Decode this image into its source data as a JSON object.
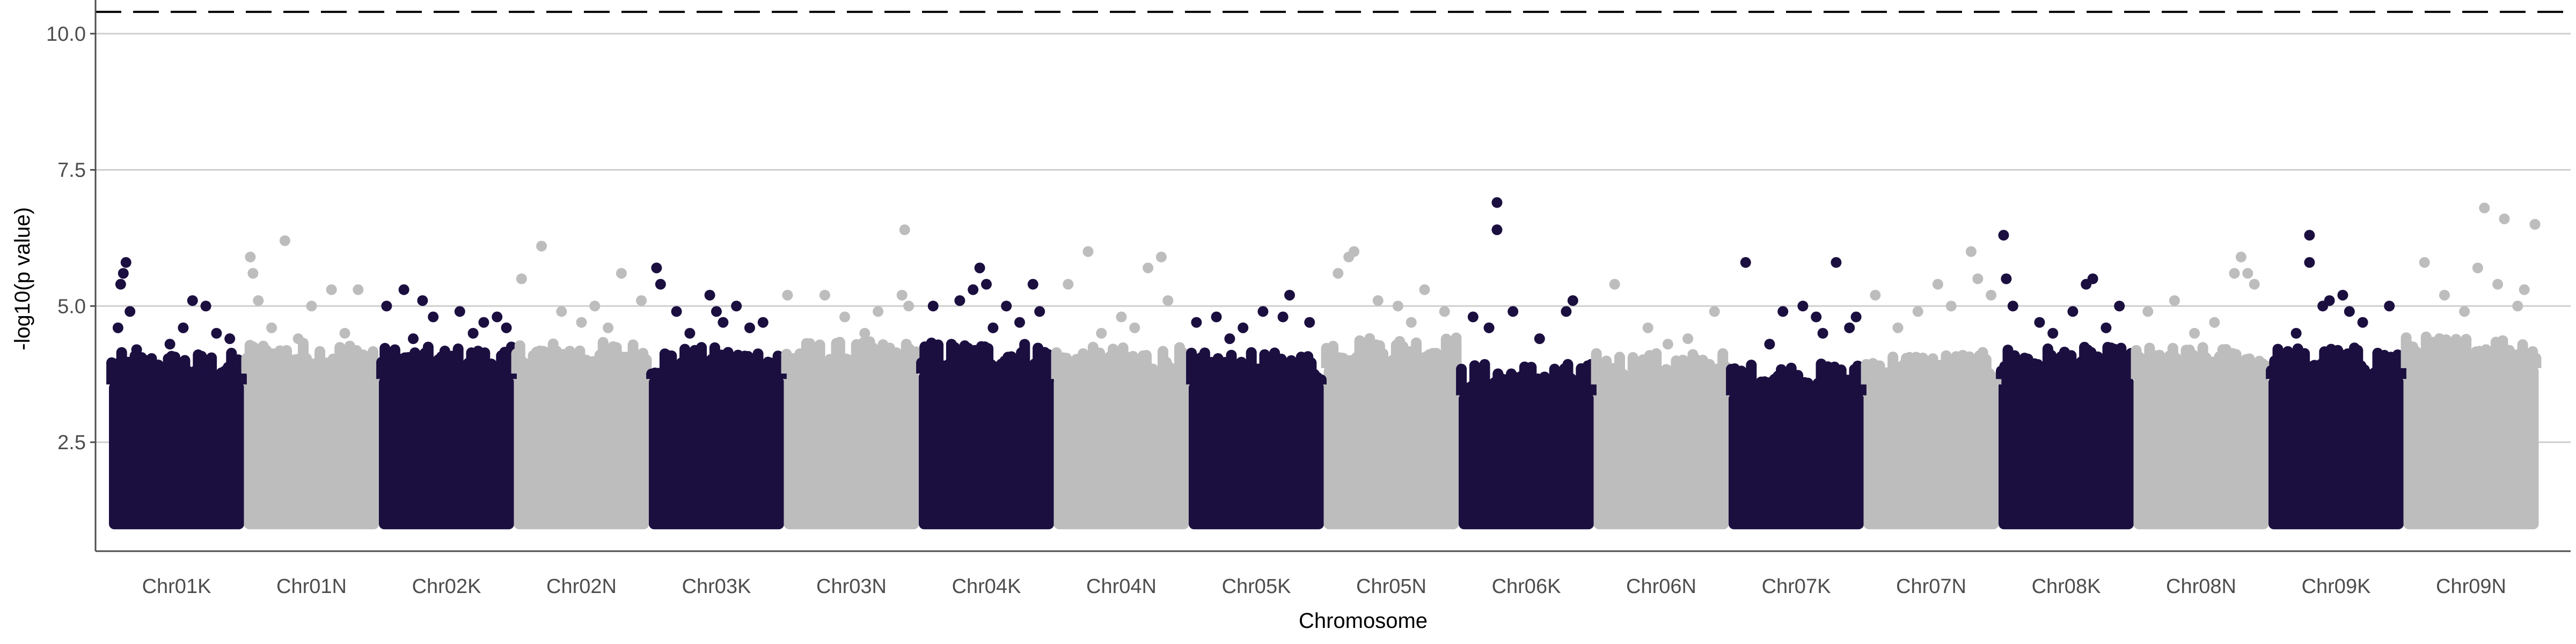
{
  "chart_data": {
    "type": "scatter",
    "subtype": "manhattan",
    "title": "",
    "xlabel": "Chromosome",
    "ylabel": "-log10(p value)",
    "ylim": [
      0.5,
      10.5
    ],
    "yticks": [
      2.5,
      5.0,
      7.5,
      10.0
    ],
    "ytick_labels": [
      "2.5",
      "5.0",
      "7.5",
      "10.0"
    ],
    "significance_line": 10.4,
    "significance_line_style": "dashed",
    "grid": "horizontal major lines",
    "legend": "none",
    "colors": {
      "odd": "#1b0f40",
      "even": "#bdbdbd",
      "grid": "#cfcfcf",
      "threshold": "#000000"
    },
    "baseline_min": 1.0,
    "categories": [
      "Chr01K",
      "Chr01N",
      "Chr02K",
      "Chr02N",
      "Chr03K",
      "Chr03N",
      "Chr04K",
      "Chr04N",
      "Chr05K",
      "Chr05N",
      "Chr06K",
      "Chr06N",
      "Chr07K",
      "Chr07N",
      "Chr08K",
      "Chr08N",
      "Chr09K",
      "Chr09N"
    ],
    "chromosomes": [
      {
        "name": "Chr01K",
        "color": "odd",
        "bulk_top": 3.6,
        "top_points": [
          [
            0.06,
            4.6
          ],
          [
            0.08,
            5.4
          ],
          [
            0.1,
            5.6
          ],
          [
            0.12,
            5.8
          ],
          [
            0.15,
            4.9
          ],
          [
            0.45,
            4.3
          ],
          [
            0.55,
            4.6
          ],
          [
            0.62,
            5.1
          ],
          [
            0.72,
            5.0
          ],
          [
            0.8,
            4.5
          ],
          [
            0.9,
            4.4
          ],
          [
            0.3,
            4.0
          ],
          [
            0.2,
            4.2
          ]
        ]
      },
      {
        "name": "Chr01N",
        "color": "even",
        "bulk_top": 3.8,
        "top_points": [
          [
            0.04,
            5.9
          ],
          [
            0.06,
            5.6
          ],
          [
            0.1,
            5.1
          ],
          [
            0.3,
            6.2
          ],
          [
            0.5,
            5.0
          ],
          [
            0.65,
            5.3
          ],
          [
            0.85,
            5.3
          ],
          [
            0.2,
            4.6
          ],
          [
            0.75,
            4.5
          ],
          [
            0.4,
            4.4
          ]
        ]
      },
      {
        "name": "Chr02K",
        "color": "odd",
        "bulk_top": 3.7,
        "top_points": [
          [
            0.05,
            5.0
          ],
          [
            0.18,
            5.3
          ],
          [
            0.32,
            5.1
          ],
          [
            0.4,
            4.8
          ],
          [
            0.6,
            4.9
          ],
          [
            0.78,
            4.7
          ],
          [
            0.88,
            4.8
          ],
          [
            0.95,
            4.6
          ],
          [
            0.25,
            4.4
          ],
          [
            0.7,
            4.5
          ]
        ]
      },
      {
        "name": "Chr02N",
        "color": "even",
        "bulk_top": 3.8,
        "top_points": [
          [
            0.05,
            5.5
          ],
          [
            0.2,
            6.1
          ],
          [
            0.35,
            4.9
          ],
          [
            0.6,
            5.0
          ],
          [
            0.8,
            5.6
          ],
          [
            0.95,
            5.1
          ],
          [
            0.5,
            4.7
          ],
          [
            0.7,
            4.6
          ]
        ]
      },
      {
        "name": "Chr03K",
        "color": "odd",
        "bulk_top": 3.7,
        "top_points": [
          [
            0.05,
            5.7
          ],
          [
            0.08,
            5.4
          ],
          [
            0.2,
            4.9
          ],
          [
            0.45,
            5.2
          ],
          [
            0.5,
            4.9
          ],
          [
            0.55,
            4.7
          ],
          [
            0.65,
            5.0
          ],
          [
            0.85,
            4.7
          ],
          [
            0.3,
            4.5
          ],
          [
            0.75,
            4.6
          ]
        ]
      },
      {
        "name": "Chr03N",
        "color": "even",
        "bulk_top": 3.8,
        "top_points": [
          [
            0.02,
            5.2
          ],
          [
            0.3,
            5.2
          ],
          [
            0.45,
            4.8
          ],
          [
            0.7,
            4.9
          ],
          [
            0.88,
            5.2
          ],
          [
            0.9,
            6.4
          ],
          [
            0.93,
            5.0
          ],
          [
            0.6,
            4.5
          ]
        ]
      },
      {
        "name": "Chr04K",
        "color": "odd",
        "bulk_top": 3.8,
        "top_points": [
          [
            0.1,
            5.0
          ],
          [
            0.3,
            5.1
          ],
          [
            0.4,
            5.3
          ],
          [
            0.45,
            5.7
          ],
          [
            0.5,
            5.4
          ],
          [
            0.65,
            5.0
          ],
          [
            0.85,
            5.4
          ],
          [
            0.9,
            4.9
          ],
          [
            0.55,
            4.6
          ],
          [
            0.75,
            4.7
          ]
        ]
      },
      {
        "name": "Chr04N",
        "color": "even",
        "bulk_top": 3.7,
        "top_points": [
          [
            0.1,
            5.4
          ],
          [
            0.25,
            6.0
          ],
          [
            0.5,
            4.8
          ],
          [
            0.7,
            5.7
          ],
          [
            0.8,
            5.9
          ],
          [
            0.85,
            5.1
          ],
          [
            0.35,
            4.5
          ],
          [
            0.6,
            4.6
          ]
        ]
      },
      {
        "name": "Chr05K",
        "color": "odd",
        "bulk_top": 3.6,
        "top_points": [
          [
            0.05,
            4.7
          ],
          [
            0.2,
            4.8
          ],
          [
            0.4,
            4.6
          ],
          [
            0.55,
            4.9
          ],
          [
            0.7,
            4.8
          ],
          [
            0.75,
            5.2
          ],
          [
            0.9,
            4.7
          ],
          [
            0.3,
            4.4
          ]
        ]
      },
      {
        "name": "Chr05N",
        "color": "even",
        "bulk_top": 3.9,
        "top_points": [
          [
            0.1,
            5.6
          ],
          [
            0.18,
            5.9
          ],
          [
            0.22,
            6.0
          ],
          [
            0.4,
            5.1
          ],
          [
            0.55,
            5.0
          ],
          [
            0.75,
            5.3
          ],
          [
            0.9,
            4.9
          ],
          [
            0.65,
            4.7
          ]
        ]
      },
      {
        "name": "Chr06K",
        "color": "odd",
        "bulk_top": 3.4,
        "top_points": [
          [
            0.28,
            6.9
          ],
          [
            0.28,
            6.4
          ],
          [
            0.1,
            4.8
          ],
          [
            0.22,
            4.6
          ],
          [
            0.4,
            4.9
          ],
          [
            0.8,
            4.9
          ],
          [
            0.85,
            5.1
          ],
          [
            0.6,
            4.4
          ]
        ]
      },
      {
        "name": "Chr06N",
        "color": "even",
        "bulk_top": 3.6,
        "top_points": [
          [
            0.15,
            5.4
          ],
          [
            0.4,
            4.6
          ],
          [
            0.7,
            4.4
          ],
          [
            0.9,
            4.9
          ],
          [
            0.55,
            4.3
          ]
        ]
      },
      {
        "name": "Chr07K",
        "color": "odd",
        "bulk_top": 3.4,
        "top_points": [
          [
            0.12,
            5.8
          ],
          [
            0.4,
            4.9
          ],
          [
            0.55,
            5.0
          ],
          [
            0.65,
            4.8
          ],
          [
            0.8,
            5.8
          ],
          [
            0.9,
            4.6
          ],
          [
            0.95,
            4.8
          ],
          [
            0.3,
            4.3
          ],
          [
            0.7,
            4.5
          ]
        ]
      },
      {
        "name": "Chr07N",
        "color": "even",
        "bulk_top": 3.6,
        "top_points": [
          [
            0.08,
            5.2
          ],
          [
            0.4,
            4.9
          ],
          [
            0.55,
            5.4
          ],
          [
            0.65,
            5.0
          ],
          [
            0.8,
            6.0
          ],
          [
            0.85,
            5.5
          ],
          [
            0.95,
            5.2
          ],
          [
            0.25,
            4.6
          ]
        ]
      },
      {
        "name": "Chr08K",
        "color": "odd",
        "bulk_top": 3.7,
        "top_points": [
          [
            0.03,
            6.3
          ],
          [
            0.05,
            5.5
          ],
          [
            0.1,
            5.0
          ],
          [
            0.3,
            4.7
          ],
          [
            0.55,
            4.9
          ],
          [
            0.65,
            5.4
          ],
          [
            0.7,
            5.5
          ],
          [
            0.9,
            5.0
          ],
          [
            0.4,
            4.5
          ],
          [
            0.8,
            4.6
          ]
        ]
      },
      {
        "name": "Chr08N",
        "color": "even",
        "bulk_top": 3.7,
        "top_points": [
          [
            0.1,
            4.9
          ],
          [
            0.3,
            5.1
          ],
          [
            0.6,
            4.7
          ],
          [
            0.75,
            5.6
          ],
          [
            0.8,
            5.9
          ],
          [
            0.9,
            5.4
          ],
          [
            0.85,
            5.6
          ],
          [
            0.45,
            4.5
          ]
        ]
      },
      {
        "name": "Chr09K",
        "color": "odd",
        "bulk_top": 3.7,
        "top_points": [
          [
            0.3,
            6.3
          ],
          [
            0.3,
            5.8
          ],
          [
            0.4,
            5.0
          ],
          [
            0.45,
            5.1
          ],
          [
            0.55,
            5.2
          ],
          [
            0.6,
            4.9
          ],
          [
            0.7,
            4.7
          ],
          [
            0.9,
            5.0
          ],
          [
            0.2,
            4.5
          ]
        ]
      },
      {
        "name": "Chr09N",
        "color": "even",
        "bulk_top": 3.9,
        "top_points": [
          [
            0.15,
            5.8
          ],
          [
            0.3,
            5.2
          ],
          [
            0.55,
            5.7
          ],
          [
            0.6,
            6.8
          ],
          [
            0.7,
            5.4
          ],
          [
            0.75,
            6.6
          ],
          [
            0.9,
            5.3
          ],
          [
            0.98,
            6.5
          ],
          [
            0.45,
            4.9
          ],
          [
            0.85,
            5.0
          ]
        ]
      }
    ]
  }
}
